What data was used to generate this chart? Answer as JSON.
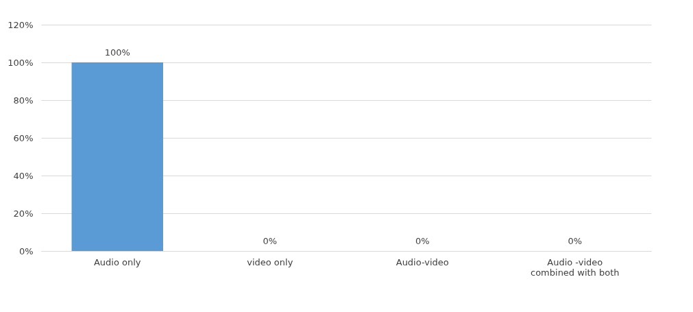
{
  "chart_data": {
    "type": "bar",
    "categories": [
      "Audio only",
      "video only",
      "Audio-video",
      "Audio -video combined with both"
    ],
    "values": [
      100,
      0,
      0,
      0
    ],
    "value_labels": [
      "100%",
      "0%",
      "0%",
      "0%"
    ],
    "color": "#5b9bd5",
    "ylim": [
      0,
      120
    ],
    "yticks": [
      {
        "value": 0,
        "label": "0%"
      },
      {
        "value": 20,
        "label": "20%"
      },
      {
        "value": 40,
        "label": "40%"
      },
      {
        "value": 60,
        "label": "60%"
      },
      {
        "value": 80,
        "label": "80%"
      },
      {
        "value": 100,
        "label": "100%"
      },
      {
        "value": 120,
        "label": "120%"
      }
    ],
    "grid": "y"
  }
}
